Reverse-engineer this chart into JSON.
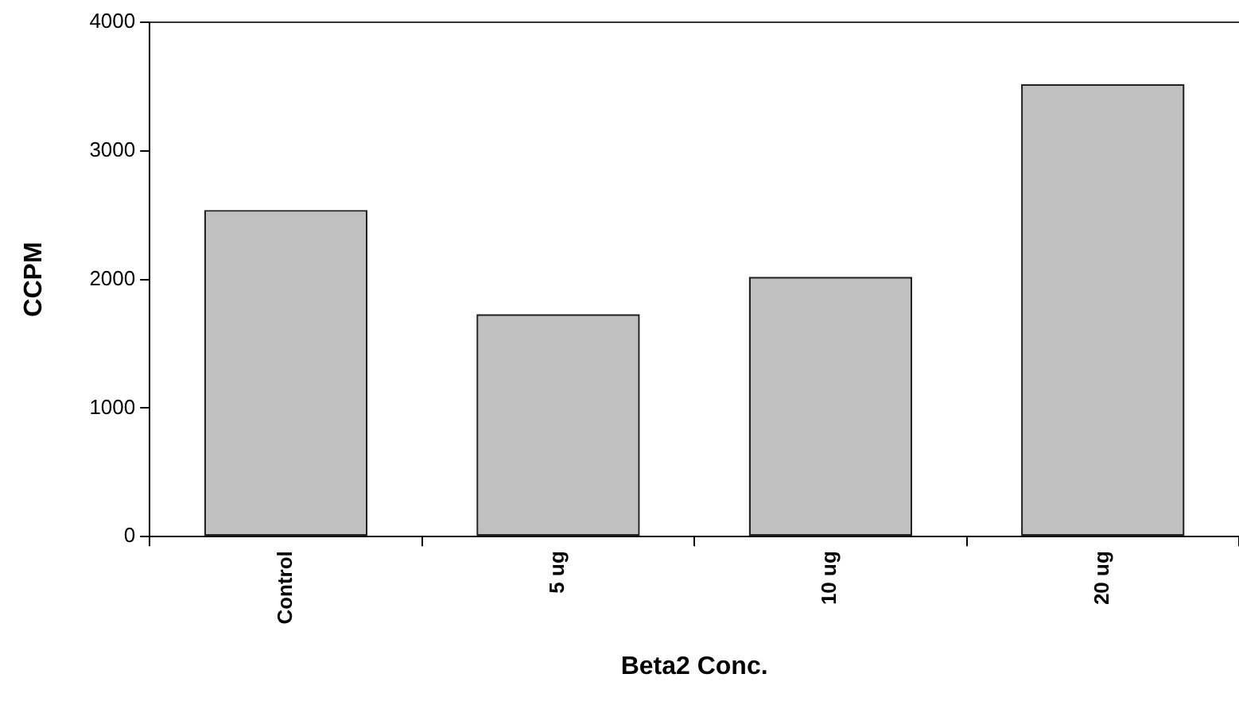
{
  "chart_data": {
    "type": "bar",
    "xlabel": "Beta2 Conc.",
    "ylabel": "CCPM",
    "categories": [
      "Control",
      "5 ug",
      "10 ug",
      "20 ug"
    ],
    "values": [
      2540,
      1730,
      2020,
      3520
    ],
    "color": "#c0c0c0",
    "ylim": [
      0,
      4000
    ],
    "yticks": [
      0,
      1000,
      2000,
      3000,
      4000
    ],
    "grid": false,
    "legend": false
  }
}
